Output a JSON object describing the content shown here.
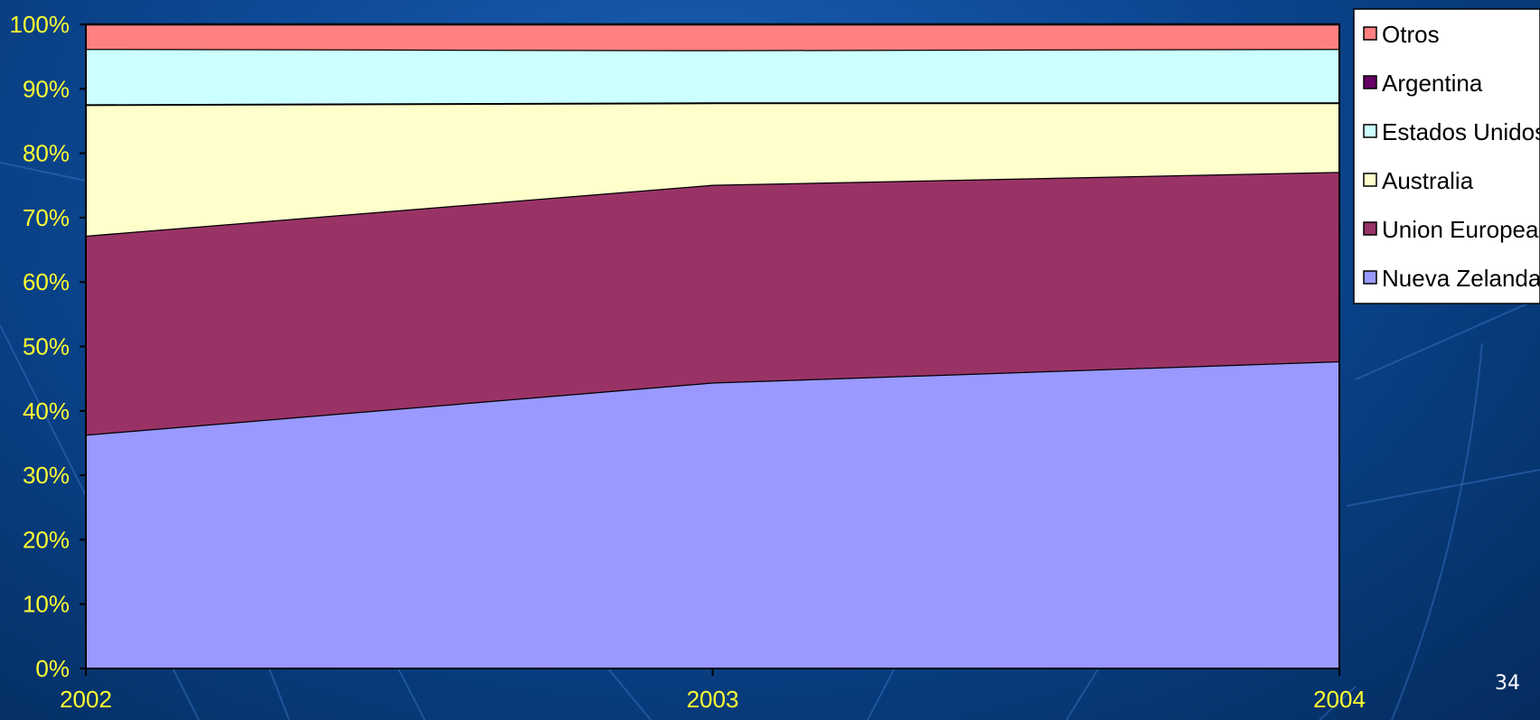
{
  "slide": {
    "number": "34"
  },
  "chart_data": {
    "type": "area",
    "stacked": true,
    "percent": true,
    "categories": [
      "2002",
      "2003",
      "2004"
    ],
    "y_ticks": [
      "0%",
      "10%",
      "20%",
      "30%",
      "40%",
      "50%",
      "60%",
      "70%",
      "80%",
      "90%",
      "100%"
    ],
    "ylim": [
      0,
      100
    ],
    "grid": false,
    "legend_position": "right-top",
    "series": [
      {
        "name": "Nueva Zelanda",
        "values": [
          36.3,
          44.4,
          47.7
        ],
        "color": "#9999ff"
      },
      {
        "name": "Union Europea",
        "values": [
          30.9,
          30.7,
          29.4
        ],
        "color": "#993366"
      },
      {
        "name": "Australia",
        "values": [
          20.3,
          12.7,
          10.7
        ],
        "color": "#ffffcc"
      },
      {
        "name": "Argentina",
        "values": [
          0.1,
          0.1,
          0.1
        ],
        "color": "#660066"
      },
      {
        "name": "Estados Unidos",
        "values": [
          8.6,
          8.1,
          8.3
        ],
        "color": "#ccffff"
      },
      {
        "name": "Otros",
        "values": [
          3.8,
          4.0,
          3.8
        ],
        "color": "#ff8080"
      }
    ],
    "legend_order": [
      "Otros",
      "Argentina",
      "Estados Unidos",
      "Australia",
      "Union Europea",
      "Nueva Zelanda"
    ],
    "tick_label_color": "#ffff33"
  }
}
